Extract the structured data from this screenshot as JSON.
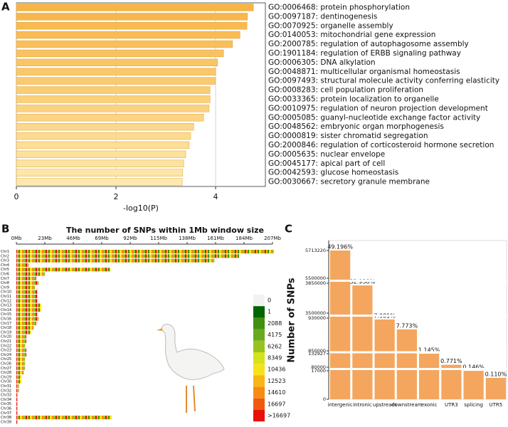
{
  "chart_data": [
    {
      "panel": "A",
      "type": "bar",
      "orientation": "horizontal",
      "categories": [
        "GO:0006468: protein phosphorylation",
        "GO:0097187: dentinogenesis",
        "GO:0070925: organelle assembly",
        "GO:0140053: mitochondrial gene expression",
        "GO:2000785: regulation of autophagosome assembly",
        "GO:1901184: regulation of ERBB signaling pathway",
        "GO:0006305: DNA alkylation",
        "GO:0048871: multicellular organismal homeostasis",
        "GO:0097493: structural molecule activity conferring elasticity",
        "GO:0008283: cell population proliferation",
        "GO:0033365: protein localization to organelle",
        "GO:0010975: regulation of neuron projection development",
        "GO:0005085: guanyl-nucleotide exchange factor activity",
        "GO:0048562: embryonic organ morphogenesis",
        "GO:0000819: sister chromatid segregation",
        "GO:2000846: regulation of corticosteroid hormone secretion",
        "GO:0005635: nuclear envelope",
        "GO:0045177: apical part of cell",
        "GO:0042593: glucose homeostasis",
        "GO:0030667: secretory granule membrane"
      ],
      "values": [
        4.76,
        4.64,
        4.63,
        4.49,
        4.34,
        4.16,
        4.04,
        4.0,
        3.99,
        3.89,
        3.89,
        3.87,
        3.76,
        3.56,
        3.5,
        3.47,
        3.4,
        3.36,
        3.34,
        3.33
      ],
      "color_range": [
        "#f8b445",
        "#fde9ab"
      ],
      "xlim": [
        0,
        5
      ],
      "xticks": [
        0,
        2,
        4
      ],
      "xlabel": "-log10(P)",
      "grid": true
    },
    {
      "panel": "B",
      "type": "heatmap",
      "title": "The number of SNPs within 1Mb window size",
      "categories": [
        "Chr1",
        "Chr2",
        "Chr3",
        "Chr4",
        "Chr5",
        "Chr6",
        "Chr7",
        "Chr8",
        "Chr9",
        "Chr10",
        "Chr11",
        "Chr12",
        "Chr13",
        "Chr14",
        "Chr15",
        "Chr16",
        "Chr17",
        "Chr18",
        "Chr19",
        "Chr20",
        "Chr21",
        "Chr22",
        "Chr23",
        "Chr24",
        "Chr25",
        "Chr26",
        "Chr27",
        "Chr28",
        "Chr29",
        "Chr30",
        "Chr31",
        "Chr32",
        "Chr33",
        "Chr34",
        "Chr35",
        "Chr36",
        "Chr37",
        "Chr38",
        "Chr39"
      ],
      "values": [
        208,
        180,
        160,
        10,
        76,
        23,
        16,
        18,
        15,
        17,
        17,
        17,
        20,
        20,
        17,
        18,
        16,
        14,
        12,
        8,
        8,
        7,
        8,
        8,
        7,
        7,
        7,
        6,
        4,
        4,
        2,
        2,
        1,
        1,
        1,
        1,
        1,
        77,
        1
      ],
      "xlim": [
        0,
        207
      ],
      "xticks": [
        {
          "value": 0,
          "label": "0Mb"
        },
        {
          "value": 23,
          "label": "23Mb"
        },
        {
          "value": 46,
          "label": "46Mb"
        },
        {
          "value": 69,
          "label": "69Mb"
        },
        {
          "value": 92,
          "label": "92Mb"
        },
        {
          "value": 115,
          "label": "115Mb"
        },
        {
          "value": 138,
          "label": "138Mb"
        },
        {
          "value": 161,
          "label": "161Mb"
        },
        {
          "value": 184,
          "label": "184Mb"
        },
        {
          "value": 207,
          "label": "207Mb"
        }
      ],
      "legend": {
        "labels": [
          "0",
          "1",
          "2088",
          "4175",
          "6262",
          "8349",
          "10436",
          "12523",
          "14610",
          "16697",
          ">16697"
        ],
        "colors": [
          "#f2f2f2",
          "#006400",
          "#3f8f12",
          "#6aa81f",
          "#98c21f",
          "#d4e21a",
          "#f4e31a",
          "#f7b516",
          "#f58d12",
          "#f05a0e",
          "#e8100a"
        ]
      }
    },
    {
      "panel": "C",
      "type": "bar",
      "orientation": "vertical",
      "categories": [
        "intergenic",
        "intronic",
        "upstream",
        "downstream",
        "exonic",
        "UTR3",
        "splicing",
        "UTR5"
      ],
      "values": [
        5713220,
        3824400,
        926700,
        902500,
        132927,
        89500,
        16950,
        12770
      ],
      "percent_labels": [
        "49.196%",
        "32.938%",
        "7.981%",
        "7.773%",
        "1.145%",
        "0.771%",
        "0.146%",
        "0.110%"
      ],
      "color": "#f4a65e",
      "ylabel": "Number of SNPs",
      "ybreaks": [
        [
          0,
          17000
        ],
        [
          80000,
          132927
        ],
        [
          850000,
          930000
        ],
        [
          3500000,
          3850000
        ],
        [
          5500000,
          5713220
        ]
      ],
      "yticks": [
        0,
        17000,
        80000,
        132927,
        850000,
        930000,
        3500000,
        3850000,
        5500000,
        5713220
      ]
    }
  ]
}
